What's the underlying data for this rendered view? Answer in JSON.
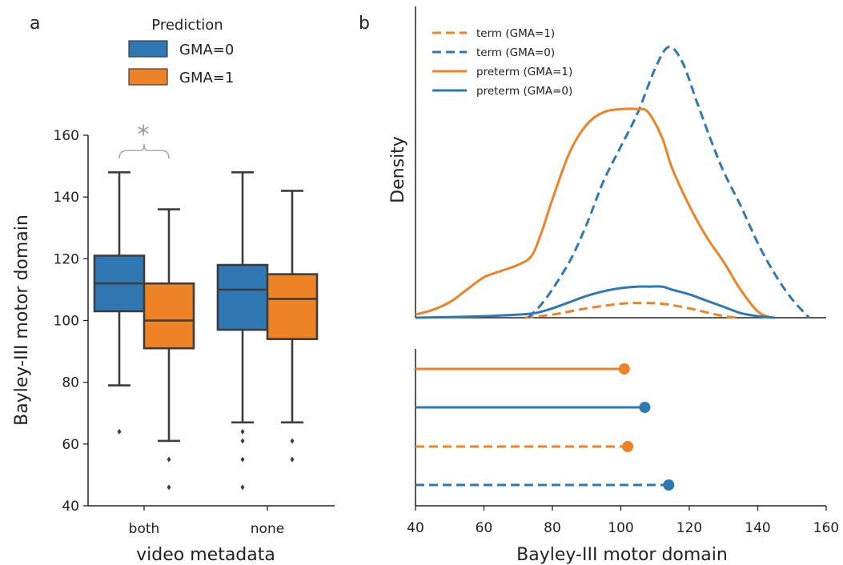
{
  "colors": {
    "gma0": "#2f78b4",
    "gma1": "#ee8227",
    "axis": "#222222",
    "box_line": "#3d3d3d",
    "sig": "#999999"
  },
  "chart_data": [
    {
      "panel_label": "a",
      "type": "box",
      "xlabel": "video metadata",
      "ylabel": "Bayley-III motor domain",
      "ylim": [
        40,
        160
      ],
      "yticks": [
        40,
        60,
        80,
        100,
        120,
        140,
        160
      ],
      "categories": [
        "both",
        "none"
      ],
      "legend": {
        "title": "Prediction",
        "entries": [
          "GMA=0",
          "GMA=1"
        ],
        "placement": "top-center"
      },
      "significance": {
        "label": "*",
        "category": "both"
      },
      "series": [
        {
          "name": "GMA=0",
          "boxes": [
            {
              "category": "both",
              "whislo": 79,
              "q1": 103,
              "med": 112,
              "q3": 121,
              "whishi": 148,
              "fliers": [
                64
              ]
            },
            {
              "category": "none",
              "whislo": 67,
              "q1": 97,
              "med": 110,
              "q3": 118,
              "whishi": 148,
              "fliers": [
                46,
                55,
                61,
                64
              ]
            }
          ]
        },
        {
          "name": "GMA=1",
          "boxes": [
            {
              "category": "both",
              "whislo": 61,
              "q1": 91,
              "med": 100,
              "q3": 112,
              "whishi": 136,
              "fliers": [
                46,
                55
              ]
            },
            {
              "category": "none",
              "whislo": 67,
              "q1": 94,
              "med": 107,
              "q3": 115,
              "whishi": 142,
              "fliers": [
                55,
                61
              ]
            }
          ]
        }
      ]
    },
    {
      "panel_label": "b",
      "type": "line",
      "ylabel": "Density",
      "xlabel": "Bayley-III motor domain",
      "xlim": [
        40,
        160
      ],
      "xticks": [
        40,
        60,
        80,
        100,
        120,
        140,
        160
      ],
      "ylim": [
        0,
        1
      ],
      "legend_placement": "top-left",
      "series": [
        {
          "name": "term (GMA=1)",
          "color": "gma1",
          "dash": true,
          "x": [
            72,
            80,
            90,
            100,
            106,
            112,
            120,
            130,
            135
          ],
          "y": [
            0,
            0.01,
            0.03,
            0.045,
            0.047,
            0.045,
            0.03,
            0.005,
            0
          ]
        },
        {
          "name": "term (GMA=0)",
          "color": "gma0",
          "dash": true,
          "x": [
            73,
            78,
            85,
            90,
            95,
            100,
            105,
            110,
            114,
            118,
            122,
            126,
            130,
            135,
            140,
            145,
            150,
            155
          ],
          "y": [
            0,
            0.06,
            0.18,
            0.3,
            0.44,
            0.55,
            0.66,
            0.8,
            0.87,
            0.82,
            0.7,
            0.58,
            0.47,
            0.36,
            0.24,
            0.14,
            0.06,
            0
          ]
        },
        {
          "name": "preterm (GMA=1)",
          "color": "gma1",
          "dash": false,
          "x": [
            40,
            45,
            50,
            55,
            60,
            65,
            70,
            74,
            77,
            80,
            85,
            90,
            95,
            100,
            105,
            108,
            112,
            115,
            120,
            125,
            130,
            135,
            140,
            144
          ],
          "y": [
            0.01,
            0.025,
            0.05,
            0.09,
            0.13,
            0.15,
            0.17,
            0.2,
            0.28,
            0.38,
            0.53,
            0.62,
            0.66,
            0.67,
            0.67,
            0.66,
            0.58,
            0.48,
            0.36,
            0.26,
            0.18,
            0.09,
            0.02,
            0
          ]
        },
        {
          "name": "preterm (GMA=0)",
          "color": "gma0",
          "dash": false,
          "x": [
            40,
            50,
            60,
            70,
            75,
            80,
            85,
            90,
            95,
            100,
            105,
            108,
            112,
            115,
            120,
            125,
            130,
            135,
            140,
            145
          ],
          "y": [
            0,
            0.002,
            0.005,
            0.01,
            0.015,
            0.03,
            0.05,
            0.07,
            0.085,
            0.095,
            0.1,
            0.1,
            0.1,
            0.09,
            0.075,
            0.055,
            0.035,
            0.015,
            0.005,
            0
          ]
        }
      ],
      "lollipops": [
        {
          "series": "preterm (GMA=1)",
          "value": 101
        },
        {
          "series": "preterm (GMA=0)",
          "value": 107
        },
        {
          "series": "term (GMA=1)",
          "value": 102
        },
        {
          "series": "term (GMA=0)",
          "value": 114
        }
      ]
    }
  ]
}
